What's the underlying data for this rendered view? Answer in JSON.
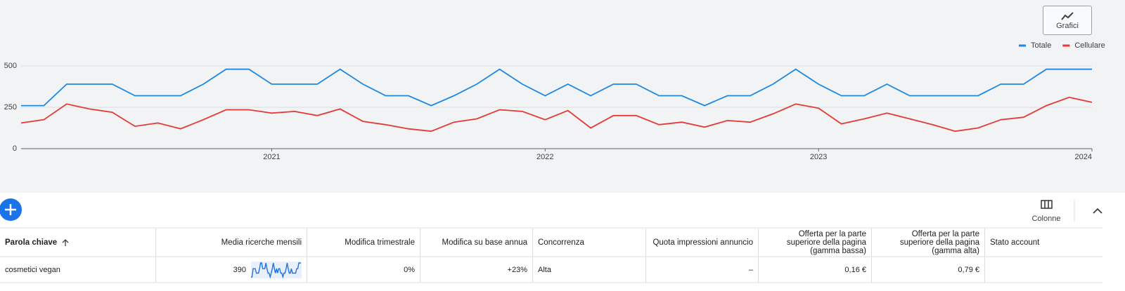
{
  "chart_data": {
    "type": "line",
    "categories": [
      null,
      null,
      null,
      null,
      null,
      null,
      null,
      null,
      null,
      null,
      null,
      "2021",
      null,
      null,
      null,
      null,
      null,
      null,
      null,
      null,
      null,
      null,
      null,
      "2022",
      null,
      null,
      null,
      null,
      null,
      null,
      null,
      null,
      null,
      null,
      null,
      "2023",
      null,
      null,
      null,
      null,
      null,
      null,
      null,
      null,
      null,
      null,
      null,
      "2024"
    ],
    "series": [
      {
        "name": "Totale",
        "color": "#1e88e5",
        "values": [
          260,
          260,
          390,
          390,
          390,
          320,
          320,
          320,
          390,
          480,
          480,
          390,
          390,
          390,
          480,
          390,
          320,
          320,
          260,
          320,
          390,
          480,
          390,
          320,
          390,
          320,
          390,
          390,
          320,
          320,
          260,
          320,
          320,
          390,
          480,
          390,
          320,
          320,
          390,
          320,
          320,
          320,
          320,
          390,
          390,
          480,
          480,
          480
        ]
      },
      {
        "name": "Cellulare",
        "color": "#e53935",
        "values": [
          155,
          175,
          270,
          240,
          220,
          135,
          155,
          120,
          175,
          235,
          235,
          215,
          225,
          200,
          240,
          165,
          145,
          120,
          105,
          160,
          180,
          235,
          225,
          175,
          230,
          125,
          200,
          200,
          145,
          160,
          130,
          170,
          160,
          210,
          270,
          245,
          150,
          180,
          215,
          180,
          145,
          105,
          125,
          175,
          190,
          260,
          310,
          280
        ]
      }
    ],
    "ylim": [
      0,
      500
    ],
    "yticks": [
      0,
      250,
      500
    ],
    "grid": true,
    "legend": "top-right"
  },
  "toolbar": {
    "charts_button": "Grafici",
    "columns_button": "Colonne"
  },
  "table": {
    "columns": [
      "Parola chiave",
      "Media ricerche mensili",
      "Modifica trimestrale",
      "Modifica su base annua",
      "Concorrenza",
      "Quota impressioni annuncio",
      "Offerta per la parte superiore della pagina (gamma bassa)",
      "Offerta per la parte superiore della pagina (gamma alta)",
      "Stato account"
    ],
    "rows": [
      [
        "cosmetici vegan",
        "390",
        "0%",
        "+23%",
        "Alta",
        "–",
        "0,16 €",
        "0,79 €"
      ]
    ]
  }
}
